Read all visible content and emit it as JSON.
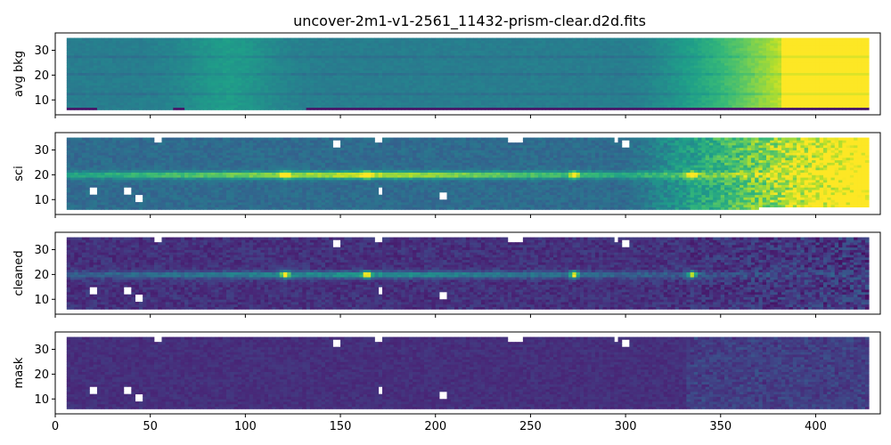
{
  "figure": {
    "title": "uncover-2m1-v1-2561_11432-prism-clear.d2d.fits"
  },
  "chart_data": {
    "type": "heatmap",
    "colormap": "viridis",
    "shared_x": true,
    "xlim": [
      0,
      434
    ],
    "x_ticks": [
      0,
      50,
      100,
      150,
      200,
      250,
      300,
      350,
      400
    ],
    "data_x_range": [
      6,
      427
    ],
    "data_y_range": [
      6,
      35
    ],
    "trace_row": 19.5,
    "emission_lines_x": [
      120,
      163,
      272,
      334
    ],
    "panels": [
      {
        "name": "avg-bkg",
        "ylabel": "avg bkg",
        "ylim": [
          4,
          37
        ],
        "y_ticks": [
          10,
          20,
          30
        ],
        "mode": "background"
      },
      {
        "name": "sci",
        "ylabel": "sci",
        "ylim": [
          4,
          37
        ],
        "y_ticks": [
          10,
          20,
          30
        ],
        "mode": "science"
      },
      {
        "name": "cleaned",
        "ylabel": "cleaned",
        "ylim": [
          4,
          37
        ],
        "y_ticks": [
          10,
          20,
          30
        ],
        "mode": "cleaned"
      },
      {
        "name": "mask",
        "ylabel": "mask",
        "ylim": [
          4,
          37
        ],
        "y_ticks": [
          10,
          20,
          30
        ],
        "mode": "mask"
      }
    ]
  }
}
